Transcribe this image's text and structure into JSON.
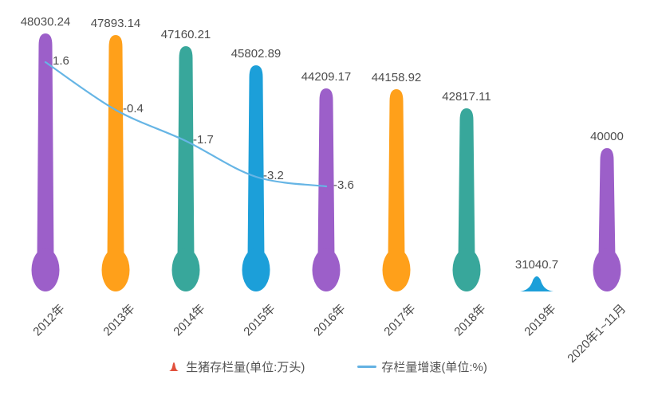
{
  "chart_data": {
    "type": "combo-pictorialBar-line",
    "categories": [
      "2012年",
      "2013年",
      "2014年",
      "2015年",
      "2016年",
      "2017年",
      "2018年",
      "2019年",
      "2020年1~11月"
    ],
    "series": [
      {
        "name": "生猪存栏量(单位:万头)",
        "type": "pictorial-bar",
        "unit": "万头",
        "values": [
          48030.24,
          47893.14,
          47160.21,
          45802.89,
          44209.17,
          44158.92,
          42817.11,
          31040.7,
          40000
        ]
      },
      {
        "name": "存栏量增速(单位:%)",
        "type": "line",
        "unit": "%",
        "values": [
          1.6,
          -0.4,
          -1.7,
          -3.2,
          -3.6,
          null,
          null,
          null,
          null
        ]
      }
    ],
    "value_labels": [
      "48030.24",
      "47893.14",
      "47160.21",
      "45802.89",
      "44209.17",
      "44158.92",
      "42817.11",
      "31040.7",
      "40000"
    ],
    "growth_labels": [
      "1.6",
      "-0.4",
      "-1.7",
      "-3.2",
      "-3.6"
    ],
    "legend": [
      {
        "label": "生猪存栏量(单位:万头)",
        "symbol": "mound-icon",
        "color": "#E1503C"
      },
      {
        "label": "存栏量增速(单位:%)",
        "symbol": "line-icon",
        "color": "#63B1E2"
      }
    ],
    "colors": {
      "bar_palette": [
        "#9C5FC9",
        "#FFA01A",
        "#38A79B",
        "#1C9FD9"
      ],
      "line": "#66B5E5",
      "label_text": "#4d4d4d",
      "legend_text": "#555555",
      "legend_marker": "#E1503C"
    },
    "layout_hints": {
      "y_axis_implied_min": 30000,
      "grid": "off",
      "legend_position": "bottom-center",
      "x_label_rotation_deg": -45,
      "line_span": "2012-2016 only"
    }
  }
}
